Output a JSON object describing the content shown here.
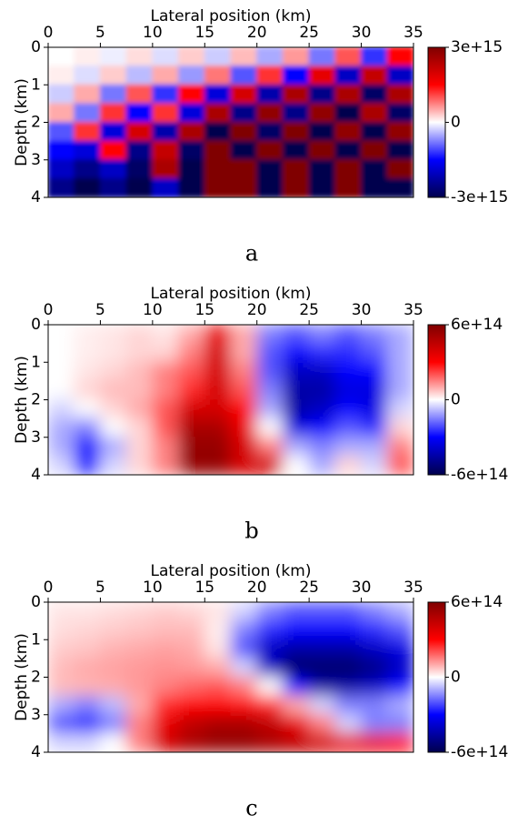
{
  "chart_data": [
    {
      "type": "heatmap",
      "colormap": "seismic",
      "caption": "a",
      "xlabel": "Lateral position (km)",
      "ylabel": "Depth (km)",
      "xlim": [
        0,
        35
      ],
      "xticks": [
        0,
        5,
        10,
        15,
        20,
        25,
        30,
        35
      ],
      "ylim": [
        0,
        4
      ],
      "yticks": [
        0,
        1,
        2,
        3,
        4
      ],
      "y_inverted": true,
      "zlim": [
        -3000000000000000.0,
        3000000000000000.0
      ],
      "zticks": [
        {
          "value": 3000000000000000.0,
          "label": "3e+15"
        },
        0,
        {
          "value": -3000000000000000.0,
          "label": "-3e+15"
        }
      ],
      "x": [
        1.25,
        3.75,
        6.25,
        8.75,
        11.25,
        13.75,
        16.25,
        18.75,
        21.25,
        23.75,
        26.25,
        28.75,
        31.25,
        33.75
      ],
      "y": [
        0.25,
        0.75,
        1.25,
        1.75,
        2.25,
        2.75,
        3.25,
        3.75
      ],
      "z": [
        [
          0,
          100000000000000.0,
          -100000000000000.0,
          200000000000000.0,
          -200000000000000.0,
          300000000000000.0,
          -300000000000000.0,
          400000000000000.0,
          -500000000000000.0,
          600000000000000.0,
          -800000000000000.0,
          1000000000000000.0,
          -1200000000000000.0,
          1500000000000000.0
        ],
        [
          100000000000000.0,
          -200000000000000.0,
          300000000000000.0,
          -400000000000000.0,
          500000000000000.0,
          -600000000000000.0,
          800000000000000.0,
          -1000000000000000.0,
          1200000000000000.0,
          -1500000000000000.0,
          1800000000000000.0,
          -2000000000000000.0,
          2200000000000000.0,
          -2000000000000000.0
        ],
        [
          -300000000000000.0,
          500000000000000.0,
          -800000000000000.0,
          1000000000000000.0,
          -1200000000000000.0,
          1500000000000000.0,
          -1800000000000000.0,
          2000000000000000.0,
          -2200000000000000.0,
          2500000000000000.0,
          -2500000000000000.0,
          2500000000000000.0,
          -2800000000000000.0,
          2500000000000000.0
        ],
        [
          500000000000000.0,
          -800000000000000.0,
          1200000000000000.0,
          -1500000000000000.0,
          1200000000000000.0,
          -1800000000000000.0,
          2500000000000000.0,
          -2500000000000000.0,
          2800000000000000.0,
          -2500000000000000.0,
          2800000000000000.0,
          -3000000000000000.0,
          2500000000000000.0,
          -2800000000000000.0
        ],
        [
          -1000000000000000.0,
          1200000000000000.0,
          -1800000000000000.0,
          2000000000000000.0,
          -2200000000000000.0,
          2500000000000000.0,
          -3000000000000000.0,
          3000000000000000.0,
          -2800000000000000.0,
          3000000000000000.0,
          -3000000000000000.0,
          2800000000000000.0,
          -3000000000000000.0,
          2800000000000000.0
        ],
        [
          -1500000000000000.0,
          -1800000000000000.0,
          1500000000000000.0,
          -2500000000000000.0,
          2200000000000000.0,
          -2800000000000000.0,
          3000000000000000.0,
          -3000000000000000.0,
          3000000000000000.0,
          -3000000000000000.0,
          3000000000000000.0,
          -3000000000000000.0,
          3000000000000000.0,
          -3000000000000000.0
        ],
        [
          -2000000000000000.0,
          -2500000000000000.0,
          -2000000000000000.0,
          -2800000000000000.0,
          2500000000000000.0,
          -3000000000000000.0,
          3000000000000000.0,
          3000000000000000.0,
          -3000000000000000.0,
          3000000000000000.0,
          -3000000000000000.0,
          3000000000000000.0,
          -3000000000000000.0,
          3000000000000000.0
        ],
        [
          -2500000000000000.0,
          -3000000000000000.0,
          -2500000000000000.0,
          -3000000000000000.0,
          -2000000000000000.0,
          -3000000000000000.0,
          3000000000000000.0,
          3000000000000000.0,
          -3000000000000000.0,
          3000000000000000.0,
          -3000000000000000.0,
          3000000000000000.0,
          -3000000000000000.0,
          -3000000000000000.0
        ]
      ]
    },
    {
      "type": "heatmap",
      "colormap": "seismic",
      "caption": "b",
      "xlabel": "Lateral position (km)",
      "ylabel": "Depth (km)",
      "xlim": [
        0,
        35
      ],
      "xticks": [
        0,
        5,
        10,
        15,
        20,
        25,
        30,
        35
      ],
      "ylim": [
        0,
        4
      ],
      "yticks": [
        0,
        1,
        2,
        3,
        4
      ],
      "y_inverted": true,
      "zlim": [
        -600000000000000.0,
        600000000000000.0
      ],
      "zticks": [
        {
          "value": 600000000000000.0,
          "label": "6e+14"
        },
        0,
        {
          "value": -600000000000000.0,
          "label": "-6e+14"
        }
      ],
      "x": [
        1.25,
        3.75,
        6.25,
        8.75,
        11.25,
        13.75,
        16.25,
        18.75,
        21.25,
        23.75,
        26.25,
        28.75,
        31.25,
        33.75
      ],
      "y": [
        0.25,
        0.75,
        1.25,
        1.75,
        2.25,
        2.75,
        3.25,
        3.75
      ],
      "z": [
        [
          0,
          20000000000000.0,
          30000000000000.0,
          50000000000000.0,
          30000000000000.0,
          100000000000000.0,
          350000000000000.0,
          100000000000000.0,
          -150000000000000.0,
          -200000000000000.0,
          -150000000000000.0,
          -200000000000000.0,
          -150000000000000.0,
          -100000000000000.0
        ],
        [
          0,
          20000000000000.0,
          30000000000000.0,
          50000000000000.0,
          50000000000000.0,
          150000000000000.0,
          400000000000000.0,
          100000000000000.0,
          -200000000000000.0,
          -300000000000000.0,
          -250000000000000.0,
          -250000000000000.0,
          -200000000000000.0,
          -100000000000000.0
        ],
        [
          0,
          30000000000000.0,
          50000000000000.0,
          80000000000000.0,
          150000000000000.0,
          200000000000000.0,
          400000000000000.0,
          150000000000000.0,
          -200000000000000.0,
          -400000000000000.0,
          -400000000000000.0,
          -300000000000000.0,
          -300000000000000.0,
          -100000000000000.0
        ],
        [
          0,
          50000000000000.0,
          80000000000000.0,
          80000000000000.0,
          150000000000000.0,
          250000000000000.0,
          400000000000000.0,
          200000000000000.0,
          -150000000000000.0,
          -450000000000000.0,
          -450000000000000.0,
          -350000000000000.0,
          -350000000000000.0,
          -100000000000000.0
        ],
        [
          -50000000000000.0,
          0,
          50000000000000.0,
          100000000000000.0,
          200000000000000.0,
          400000000000000.0,
          400000000000000.0,
          300000000000000.0,
          -100000000000000.0,
          -450000000000000.0,
          -400000000000000.0,
          -300000000000000.0,
          -350000000000000.0,
          -50000000000000.0
        ],
        [
          -100000000000000.0,
          -150000000000000.0,
          0,
          50000000000000.0,
          200000000000000.0,
          500000000000000.0,
          500000000000000.0,
          350000000000000.0,
          0,
          -350000000000000.0,
          -300000000000000.0,
          -200000000000000.0,
          -250000000000000.0,
          50000000000000.0
        ],
        [
          -100000000000000.0,
          -300000000000000.0,
          -100000000000000.0,
          50000000000000.0,
          150000000000000.0,
          550000000000000.0,
          550000000000000.0,
          400000000000000.0,
          150000000000000.0,
          -100000000000000.0,
          -150000000000000.0,
          -100000000000000.0,
          -100000000000000.0,
          150000000000000.0
        ],
        [
          -50000000000000.0,
          -250000000000000.0,
          -50000000000000.0,
          50000000000000.0,
          150000000000000.0,
          550000000000000.0,
          550000000000000.0,
          400000000000000.0,
          400000000000000.0,
          0,
          -100000000000000.0,
          50000000000000.0,
          -50000000000000.0,
          200000000000000.0
        ]
      ]
    },
    {
      "type": "heatmap",
      "colormap": "seismic",
      "caption": "c",
      "xlabel": "Lateral position (km)",
      "ylabel": "Depth (km)",
      "xlim": [
        0,
        35
      ],
      "xticks": [
        0,
        5,
        10,
        15,
        20,
        25,
        30,
        35
      ],
      "ylim": [
        0,
        4
      ],
      "yticks": [
        0,
        1,
        2,
        3,
        4
      ],
      "y_inverted": true,
      "zlim": [
        -600000000000000.0,
        600000000000000.0
      ],
      "zticks": [
        {
          "value": 600000000000000.0,
          "label": "6e+14"
        },
        0,
        {
          "value": -600000000000000.0,
          "label": "-6e+14"
        }
      ],
      "x": [
        1.25,
        3.75,
        6.25,
        8.75,
        11.25,
        13.75,
        16.25,
        18.75,
        21.25,
        23.75,
        26.25,
        28.75,
        31.25,
        33.75
      ],
      "y": [
        0.25,
        0.75,
        1.25,
        1.75,
        2.25,
        2.75,
        3.25,
        3.75
      ],
      "z": [
        [
          30000000000000.0,
          30000000000000.0,
          40000000000000.0,
          50000000000000.0,
          60000000000000.0,
          50000000000000.0,
          30000000000000.0,
          -50000000000000.0,
          -150000000000000.0,
          -200000000000000.0,
          -200000000000000.0,
          -200000000000000.0,
          -150000000000000.0,
          -100000000000000.0
        ],
        [
          40000000000000.0,
          50000000000000.0,
          60000000000000.0,
          70000000000000.0,
          80000000000000.0,
          80000000000000.0,
          20000000000000.0,
          -150000000000000.0,
          -250000000000000.0,
          -300000000000000.0,
          -300000000000000.0,
          -300000000000000.0,
          -250000000000000.0,
          -200000000000000.0
        ],
        [
          60000000000000.0,
          70000000000000.0,
          90000000000000.0,
          100000000000000.0,
          110000000000000.0,
          100000000000000.0,
          30000000000000.0,
          -200000000000000.0,
          -400000000000000.0,
          -450000000000000.0,
          -450000000000000.0,
          -450000000000000.0,
          -400000000000000.0,
          -350000000000000.0
        ],
        [
          80000000000000.0,
          100000000000000.0,
          110000000000000.0,
          120000000000000.0,
          130000000000000.0,
          120000000000000.0,
          100000000000000.0,
          -50000000000000.0,
          -400000000000000.0,
          -550000000000000.0,
          -550000000000000.0,
          -550000000000000.0,
          -500000000000000.0,
          -400000000000000.0
        ],
        [
          80000000000000.0,
          90000000000000.0,
          100000000000000.0,
          120000000000000.0,
          150000000000000.0,
          180000000000000.0,
          200000000000000.0,
          150000000000000.0,
          0,
          -300000000000000.0,
          -450000000000000.0,
          -450000000000000.0,
          -400000000000000.0,
          -300000000000000.0
        ],
        [
          -100000000000000.0,
          -150000000000000.0,
          -80000000000000.0,
          100000000000000.0,
          250000000000000.0,
          300000000000000.0,
          300000000000000.0,
          280000000000000.0,
          250000000000000.0,
          100000000000000.0,
          -50000000000000.0,
          -150000000000000.0,
          -150000000000000.0,
          -100000000000000.0
        ],
        [
          -200000000000000.0,
          -250000000000000.0,
          -150000000000000.0,
          150000000000000.0,
          350000000000000.0,
          450000000000000.0,
          500000000000000.0,
          500000000000000.0,
          450000000000000.0,
          350000000000000.0,
          150000000000000.0,
          -50000000000000.0,
          -150000000000000.0,
          -150000000000000.0
        ],
        [
          -50000000000000.0,
          -50000000000000.0,
          0,
          150000000000000.0,
          400000000000000.0,
          500000000000000.0,
          550000000000000.0,
          550000000000000.0,
          500000000000000.0,
          450000000000000.0,
          400000000000000.0,
          350000000000000.0,
          350000000000000.0,
          300000000000000.0
        ]
      ]
    }
  ]
}
